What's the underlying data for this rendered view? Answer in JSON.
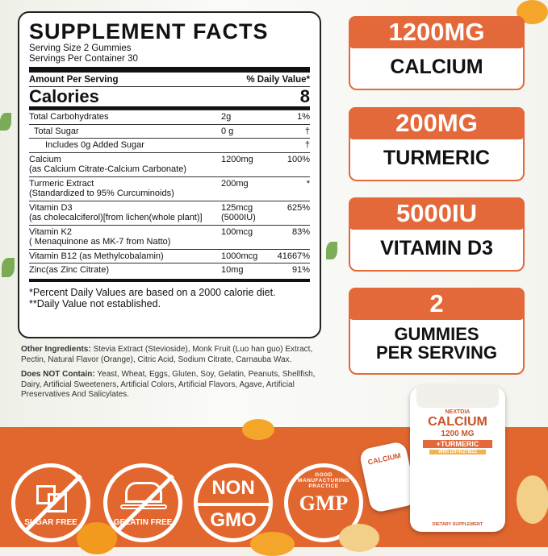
{
  "facts": {
    "title": "SUPPLEMENT FACTS",
    "serving_size": "Serving Size 2 Gummies",
    "servings_per_container": "Servings Per Container 30",
    "amount_header": "Amount Per Serving",
    "dv_header": "% Daily Value*",
    "calories_label": "Calories",
    "calories_value": "8",
    "rows": [
      {
        "name": "Total Carbohydrates",
        "sub": "",
        "amount": "2g",
        "amount2": "",
        "dv": "1%"
      },
      {
        "name": "Total Sugar",
        "sub": "",
        "amount": "0 g",
        "amount2": "",
        "dv": "†"
      },
      {
        "name": "Includes 0g Added Sugar",
        "sub": "",
        "amount": "",
        "amount2": "",
        "dv": "†"
      },
      {
        "name": "Calcium",
        "sub": "(as Calcium Citrate-Calcium Carbonate)",
        "amount": "1200mg",
        "amount2": "",
        "dv": "100%"
      },
      {
        "name": "Turmeric Extract",
        "sub": "(Standardized to 95% Curcuminoids)",
        "amount": "200mg",
        "amount2": "",
        "dv": "*"
      },
      {
        "name": "Vitamin D3",
        "sub": "(as cholecalciferol)[from lichen(whole plant)]",
        "amount": "125mcg",
        "amount2": "(5000IU)",
        "dv": "625%"
      },
      {
        "name": "Vitamin K2",
        "sub": "( Menaquinone as MK-7 from Natto)",
        "amount": "100mcg",
        "amount2": "",
        "dv": "83%"
      },
      {
        "name": "Vitamin B12 (as Methylcobalamin)",
        "sub": "",
        "amount": "1000mcg",
        "amount2": "",
        "dv": "41667%"
      },
      {
        "name": "Zinc(as Zinc Citrate)",
        "sub": "",
        "amount": "10mg",
        "amount2": "",
        "dv": "91%"
      }
    ],
    "footnote1": "*Percent Daily Values are based on a 2000 calorie diet.",
    "footnote2": "**Daily Value not established."
  },
  "ingredients": {
    "other_label": "Other Ingredients:",
    "other_text": " Stevia Extract (Stevioside), Monk Fruit (Luo han guo) Extract, Pectin, Natural Flavor (Orange), Citric Acid, Sodium Citrate, Carnauba Wax.",
    "not_label": "Does NOT Contain:",
    "not_text": " Yeast, Wheat, Eggs, Gluten, Soy, Gelatin, Peanuts, Shellfish, Dairy, Artificial Sweeteners, Artificial Colors, Artificial Flavors, Agave, Artificial Preservatives And Salicylates."
  },
  "cards": [
    {
      "value": "1200MG",
      "label": "CALCIUM"
    },
    {
      "value": "200MG",
      "label": "TURMERIC"
    },
    {
      "value": "5000IU",
      "label": "VITAMIN D3"
    },
    {
      "value": "2",
      "label": "GUMMIES PER SERVING"
    }
  ],
  "badges": {
    "sugar": "SUGAR FREE",
    "gelatin": "GELATIN FREE",
    "non": "NON",
    "gmo": "GMO",
    "gmp": "GMP",
    "gmp_ring": "GOOD MANUFACTURING PRACTICE"
  },
  "bottle": {
    "brand": "NEXTDIA",
    "name": "CALCIUM",
    "dose": "1200 MG",
    "plus": "+TURMERIC",
    "with": "With D3+K2+B12",
    "footer": "DIETARY SUPPLEMENT"
  },
  "colors": {
    "accent": "#e3683a",
    "band": "#e2672f"
  }
}
